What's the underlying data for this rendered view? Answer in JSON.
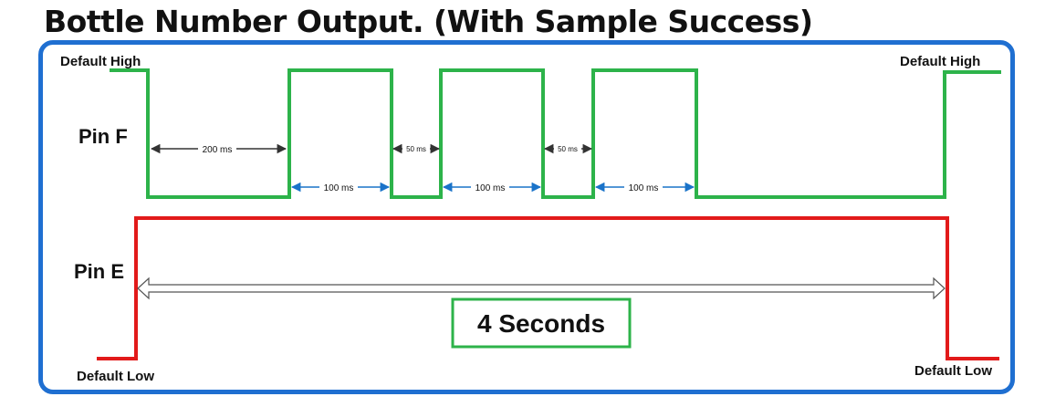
{
  "title": "Bottle Number Output. (With Sample Success)",
  "colors": {
    "frame": "#1f6fd1",
    "pin_f": "#2db34a",
    "pin_e": "#e21a1a",
    "dim_black": "#333333",
    "dim_blue": "#1a73c9",
    "box": "#2db34a"
  },
  "labels": {
    "default_high_left": "Default High",
    "default_high_right": "Default High",
    "default_low_left": "Default Low",
    "default_low_right": "Default Low",
    "pin_f": "Pin F",
    "pin_e": "Pin E"
  },
  "durations": {
    "first_low": "200 ms",
    "high_1": "100 ms",
    "low_2": "50 ms",
    "high_2": "100 ms",
    "low_3": "50 ms",
    "high_3": "100 ms"
  },
  "total": "4 Seconds"
}
